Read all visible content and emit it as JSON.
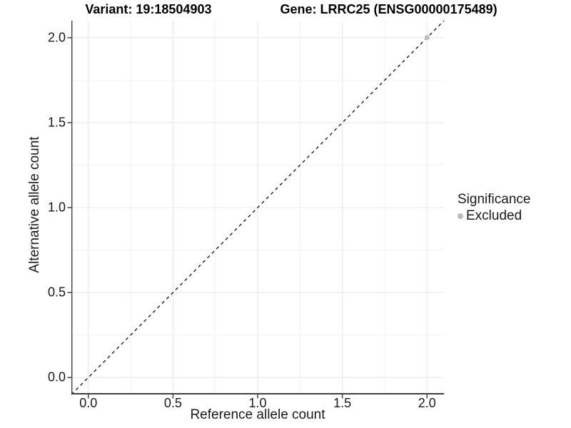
{
  "title": {
    "variant": "Variant: 19:18504903",
    "gene": "Gene: LRRC25 (ENSG00000175489)"
  },
  "chart_data": {
    "type": "scatter",
    "title": "Variant: 19:18504903   Gene: LRRC25 (ENSG00000175489)",
    "xlabel": "Reference allele count",
    "ylabel": "Alternative allele count",
    "xlim": [
      -0.1,
      2.1
    ],
    "ylim": [
      -0.1,
      2.1
    ],
    "xticks": [
      0.0,
      0.5,
      1.0,
      1.5,
      2.0
    ],
    "yticks": [
      0.0,
      0.5,
      1.0,
      1.5,
      2.0
    ],
    "minor_xticks": [
      0.25,
      0.75,
      1.25,
      1.75
    ],
    "minor_yticks": [
      0.25,
      0.75,
      1.25,
      1.75
    ],
    "tick_decimals": 1,
    "grid": "major+minor",
    "points": [
      {
        "x": 2.0,
        "y": 2.0,
        "series": "Excluded"
      }
    ],
    "identity_line": {
      "slope": 1,
      "intercept": 0,
      "style": "dashed"
    },
    "legend": {
      "title": "Significance",
      "position": "right",
      "items": [
        {
          "label": "Excluded",
          "color": "#bdbdbd"
        }
      ]
    },
    "colors": {
      "point_excluded": "#bdbdbd",
      "grid_major": "#e8e8e8",
      "grid_minor": "#f2f2f2",
      "axis_line": "#404040",
      "dashed_line": "#1c1c1c",
      "background": "#ffffff"
    }
  }
}
